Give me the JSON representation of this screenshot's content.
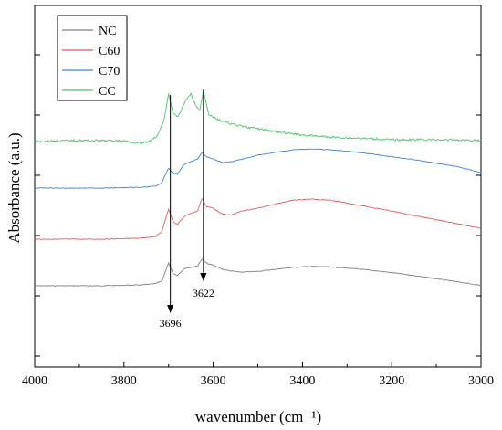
{
  "chart_data": {
    "type": "line",
    "title": "",
    "xlabel": "wavenumber (cm⁻¹)",
    "ylabel": "Absorbance (a.u.)",
    "xlim": [
      4000,
      3000
    ],
    "x_reversed": true,
    "y_ticks_labeled": false,
    "grid": false,
    "legend_position": "top-left",
    "x_ticks": [
      "4000",
      "3800",
      "3600",
      "3400",
      "3200",
      "3000"
    ],
    "series": [
      {
        "name": "NC",
        "color": "#808080",
        "x": [
          4000,
          3850,
          3760,
          3730,
          3715,
          3700,
          3690,
          3680,
          3665,
          3650,
          3635,
          3625,
          3615,
          3600,
          3580,
          3560,
          3540,
          3500,
          3460,
          3420,
          3380,
          3340,
          3300,
          3250,
          3200,
          3150,
          3100,
          3050,
          3000
        ],
        "y": [
          0.0,
          0.0,
          0.02,
          0.05,
          0.12,
          0.55,
          0.3,
          0.25,
          0.42,
          0.45,
          0.48,
          0.66,
          0.55,
          0.5,
          0.4,
          0.36,
          0.33,
          0.35,
          0.4,
          0.45,
          0.47,
          0.46,
          0.43,
          0.38,
          0.32,
          0.25,
          0.17,
          0.09,
          0.01
        ]
      },
      {
        "name": "C60",
        "color": "#e05d5d",
        "x": [
          4000,
          3850,
          3760,
          3730,
          3715,
          3700,
          3690,
          3680,
          3665,
          3650,
          3635,
          3625,
          3615,
          3600,
          3580,
          3560,
          3540,
          3500,
          3460,
          3420,
          3380,
          3340,
          3300,
          3250,
          3200,
          3150,
          3100,
          3050,
          3000
        ],
        "y": [
          0.0,
          0.0,
          0.02,
          0.05,
          0.15,
          0.6,
          0.35,
          0.3,
          0.45,
          0.52,
          0.56,
          0.82,
          0.65,
          0.62,
          0.5,
          0.48,
          0.55,
          0.62,
          0.7,
          0.78,
          0.8,
          0.78,
          0.72,
          0.64,
          0.56,
          0.47,
          0.39,
          0.3,
          0.22
        ]
      },
      {
        "name": "C70",
        "color": "#3b87d9",
        "x": [
          4000,
          3850,
          3760,
          3730,
          3715,
          3700,
          3690,
          3680,
          3665,
          3650,
          3635,
          3625,
          3615,
          3600,
          3580,
          3560,
          3540,
          3500,
          3460,
          3420,
          3380,
          3340,
          3300,
          3250,
          3200,
          3150,
          3100,
          3050,
          3000
        ],
        "y": [
          0.0,
          0.0,
          0.02,
          0.05,
          0.15,
          0.55,
          0.4,
          0.38,
          0.65,
          0.72,
          0.8,
          0.98,
          0.85,
          0.8,
          0.7,
          0.72,
          0.78,
          0.9,
          0.98,
          1.05,
          1.07,
          1.05,
          1.01,
          0.94,
          0.86,
          0.78,
          0.68,
          0.58,
          0.42
        ]
      },
      {
        "name": "CC",
        "color": "#4cc46a",
        "x": [
          4000,
          3900,
          3800,
          3760,
          3740,
          3725,
          3710,
          3700,
          3690,
          3680,
          3670,
          3660,
          3650,
          3640,
          3630,
          3622,
          3610,
          3590,
          3560,
          3530,
          3500,
          3450,
          3400,
          3350,
          3300,
          3250,
          3200,
          3150,
          3100,
          3050,
          3000
        ],
        "y": [
          0.0,
          0.03,
          0.02,
          -0.05,
          0.02,
          0.15,
          0.6,
          1.3,
          0.8,
          0.65,
          0.9,
          1.15,
          1.3,
          1.0,
          0.85,
          1.4,
          0.75,
          0.6,
          0.48,
          0.4,
          0.35,
          0.25,
          0.18,
          0.13,
          0.1,
          0.08,
          0.05,
          0.05,
          0.05,
          0.04,
          0.03
        ]
      }
    ],
    "annotations": [
      {
        "text": "3696",
        "x": 3696
      },
      {
        "text": "3622",
        "x": 3622
      }
    ]
  }
}
